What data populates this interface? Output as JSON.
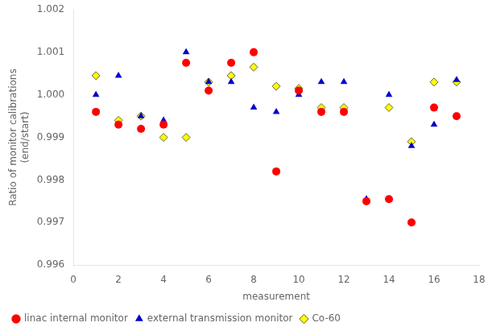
{
  "chart_data": {
    "type": "scatter",
    "xlabel": "measurement",
    "ylabel": "Ratio of monitor calibrations\n(end/start)",
    "series": [
      {
        "name": "linac internal monitor",
        "color": "#ff0000",
        "marker": "circle",
        "x": [
          1,
          2,
          3,
          4,
          5,
          6,
          7,
          8,
          9,
          10,
          11,
          12,
          13,
          14,
          15,
          16,
          17
        ],
        "values": [
          0.9996,
          0.9993,
          0.9992,
          0.9993,
          1.00075,
          1.0001,
          1.00075,
          1.001,
          0.9982,
          1.0001,
          0.9996,
          0.9996,
          0.9975,
          0.99755,
          0.997,
          0.9997,
          0.9995
        ]
      },
      {
        "name": "external transmission monitor",
        "color": "#0000cc",
        "marker": "triangle",
        "x": [
          1,
          2,
          3,
          4,
          5,
          6,
          7,
          8,
          9,
          10,
          11,
          12,
          13,
          14,
          15,
          16,
          17
        ],
        "values": [
          1.0,
          1.00045,
          0.9995,
          0.9994,
          1.001,
          1.0003,
          1.0003,
          0.9997,
          0.9996,
          1.0,
          1.0003,
          1.0003,
          0.99755,
          1.0,
          0.9988,
          0.9993,
          1.00035
        ]
      },
      {
        "name": "Co-60",
        "color": "#ffff00",
        "marker": "diamond",
        "x": [
          1,
          2,
          3,
          4,
          5,
          6,
          7,
          8,
          9,
          10,
          11,
          12,
          14,
          15,
          16,
          17
        ],
        "values": [
          1.00045,
          0.9994,
          0.9995,
          0.999,
          0.999,
          1.0003,
          1.00045,
          1.00065,
          1.0002,
          1.00015,
          0.9997,
          0.9997,
          0.9997,
          0.9989,
          1.0003,
          1.0003
        ]
      }
    ],
    "xlim": [
      0,
      18
    ],
    "ylim": [
      0.996,
      1.002
    ],
    "xticks": [
      0,
      2,
      4,
      6,
      8,
      10,
      12,
      14,
      16,
      18
    ],
    "yticks": [
      0.996,
      0.997,
      0.998,
      0.999,
      {
        "value": 1.0,
        "label": "1.000"
      },
      1.001,
      1.002
    ],
    "grid": false,
    "legend": "lower left"
  }
}
